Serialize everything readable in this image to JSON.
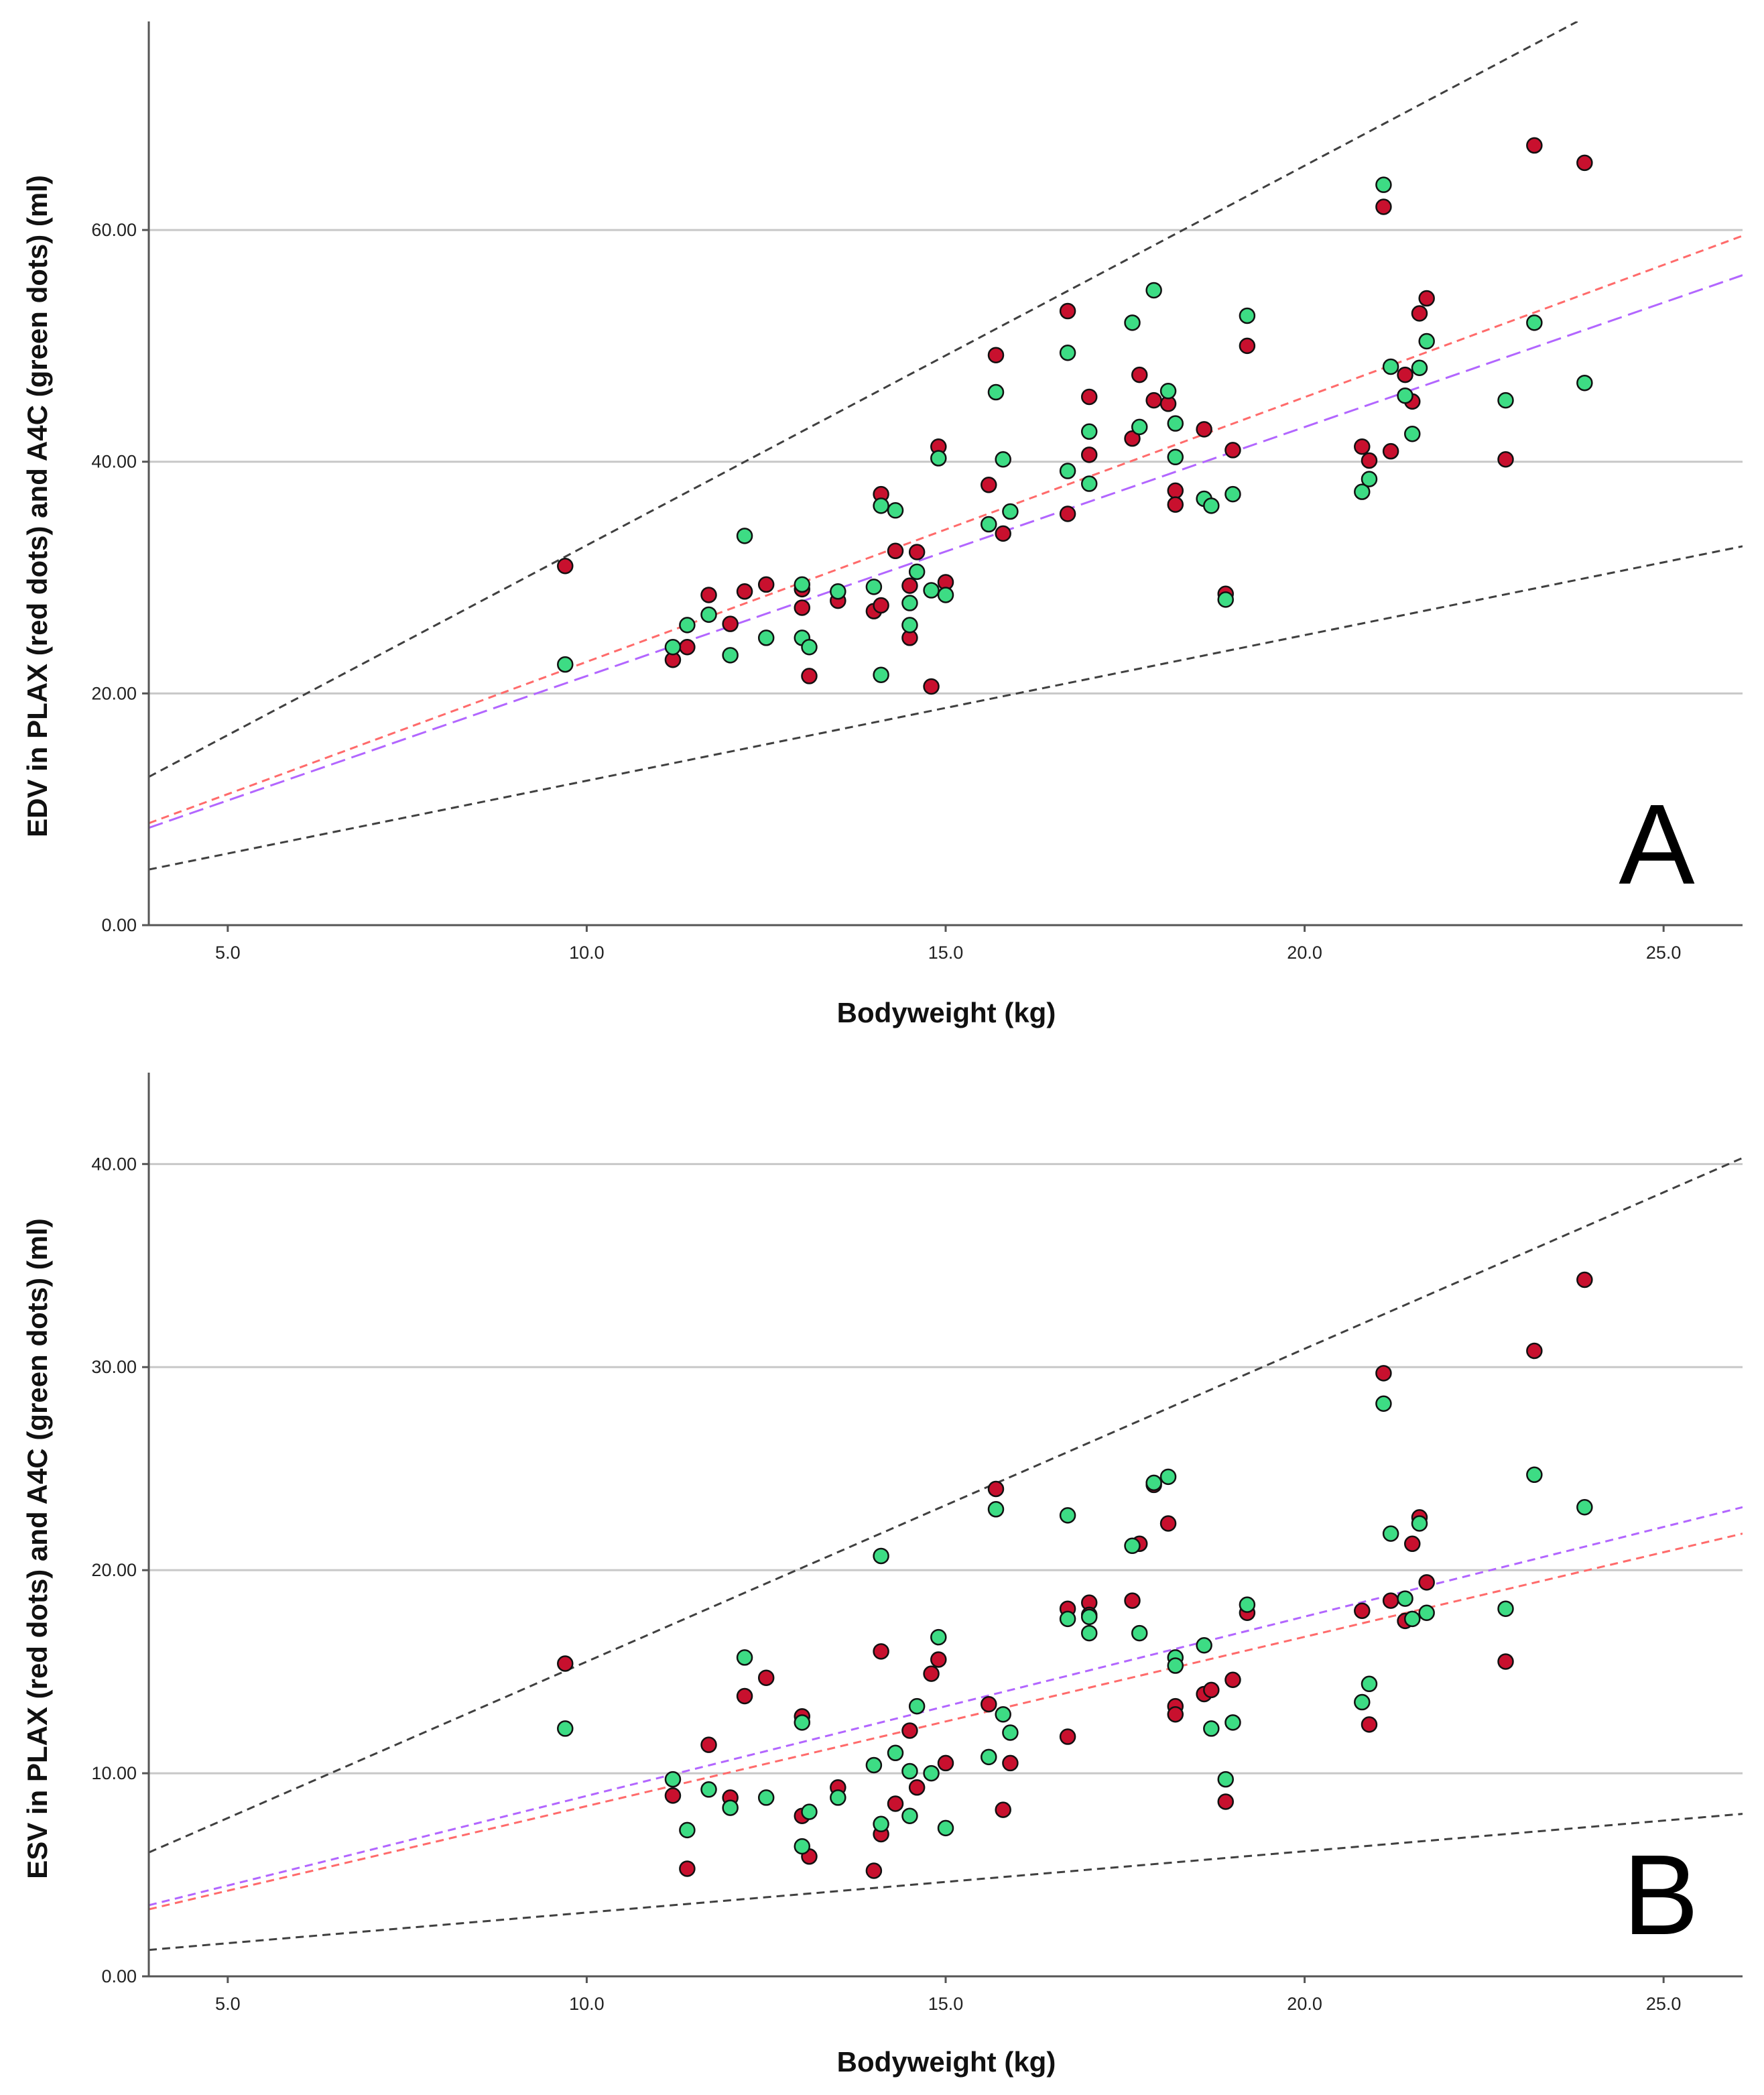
{
  "figure": {
    "colors": {
      "plax_dot": "#c8102e",
      "a4c_dot": "#3ddc84",
      "dot_edge": "#111111",
      "plax_fit": "#ff6b6b",
      "a4c_fit": "#b266ff",
      "limit_line": "#404040",
      "grid": "#c8c8c8",
      "axis": "#555555"
    }
  },
  "chart_data": [
    {
      "type": "scatter",
      "panel_label": "A",
      "xlabel": "Bodyweight (kg)",
      "ylabel": "EDV in PLAX (red dots) and A4C (green dots) (ml)",
      "xlim": [
        3.9,
        26.1
      ],
      "ylim": [
        0,
        78
      ],
      "x_ticks": [
        5,
        10,
        15,
        20,
        25
      ],
      "x_tick_labels": [
        "5.0",
        "10.0",
        "15.0",
        "20.0",
        "25.0"
      ],
      "y_ticks": [
        0,
        20,
        40,
        60
      ],
      "y_tick_labels": [
        "0.00",
        "20.00",
        "40.00",
        "60.00"
      ],
      "grid": "horizontal",
      "series": [
        {
          "name": "PLAX",
          "color": "#c8102e",
          "points": [
            [
              9.7,
              31.0
            ],
            [
              11.2,
              22.9
            ],
            [
              11.4,
              24.0
            ],
            [
              11.7,
              28.5
            ],
            [
              12.0,
              26.0
            ],
            [
              12.2,
              28.8
            ],
            [
              12.5,
              29.4
            ],
            [
              13.0,
              29.0
            ],
            [
              13.0,
              27.4
            ],
            [
              13.1,
              21.5
            ],
            [
              13.5,
              28.0
            ],
            [
              14.0,
              27.1
            ],
            [
              14.1,
              27.6
            ],
            [
              14.1,
              37.2
            ],
            [
              14.3,
              32.3
            ],
            [
              14.5,
              29.3
            ],
            [
              14.5,
              24.8
            ],
            [
              14.6,
              32.2
            ],
            [
              14.8,
              20.6
            ],
            [
              14.9,
              41.3
            ],
            [
              15.0,
              29.6
            ],
            [
              15.6,
              38.0
            ],
            [
              15.7,
              49.2
            ],
            [
              15.8,
              33.8
            ],
            [
              16.7,
              53.0
            ],
            [
              16.7,
              35.5
            ],
            [
              17.0,
              45.6
            ],
            [
              17.0,
              40.6
            ],
            [
              17.6,
              42.0
            ],
            [
              17.7,
              47.5
            ],
            [
              17.9,
              45.3
            ],
            [
              18.1,
              45.0
            ],
            [
              18.2,
              37.5
            ],
            [
              18.2,
              36.3
            ],
            [
              18.6,
              42.8
            ],
            [
              18.9,
              28.6
            ],
            [
              19.0,
              41.0
            ],
            [
              19.2,
              50.0
            ],
            [
              20.8,
              41.3
            ],
            [
              20.9,
              40.1
            ],
            [
              21.1,
              62.0
            ],
            [
              21.2,
              40.9
            ],
            [
              21.4,
              47.5
            ],
            [
              21.5,
              45.2
            ],
            [
              21.6,
              52.8
            ],
            [
              21.7,
              54.1
            ],
            [
              22.8,
              40.2
            ],
            [
              23.2,
              67.3
            ],
            [
              23.9,
              65.8
            ]
          ]
        },
        {
          "name": "A4C",
          "color": "#3ddc84",
          "points": [
            [
              9.7,
              22.5
            ],
            [
              11.2,
              24.0
            ],
            [
              11.4,
              25.9
            ],
            [
              11.7,
              26.8
            ],
            [
              12.0,
              23.3
            ],
            [
              12.2,
              33.6
            ],
            [
              12.5,
              24.8
            ],
            [
              13.0,
              29.4
            ],
            [
              13.0,
              24.8
            ],
            [
              13.1,
              24.0
            ],
            [
              13.5,
              28.8
            ],
            [
              14.0,
              29.2
            ],
            [
              14.1,
              36.2
            ],
            [
              14.1,
              21.6
            ],
            [
              14.3,
              35.8
            ],
            [
              14.5,
              27.8
            ],
            [
              14.5,
              25.9
            ],
            [
              14.6,
              30.5
            ],
            [
              14.8,
              28.9
            ],
            [
              14.9,
              40.3
            ],
            [
              15.0,
              28.5
            ],
            [
              15.6,
              34.6
            ],
            [
              15.7,
              46.0
            ],
            [
              15.8,
              40.2
            ],
            [
              15.9,
              35.7
            ],
            [
              16.7,
              49.4
            ],
            [
              16.7,
              39.2
            ],
            [
              17.0,
              42.6
            ],
            [
              17.0,
              38.1
            ],
            [
              17.6,
              52.0
            ],
            [
              17.7,
              43.0
            ],
            [
              17.9,
              54.8
            ],
            [
              18.1,
              46.1
            ],
            [
              18.2,
              43.3
            ],
            [
              18.2,
              40.4
            ],
            [
              18.6,
              36.8
            ],
            [
              18.7,
              36.2
            ],
            [
              18.9,
              28.1
            ],
            [
              19.0,
              37.2
            ],
            [
              19.2,
              52.6
            ],
            [
              20.8,
              37.4
            ],
            [
              20.9,
              38.5
            ],
            [
              21.1,
              63.9
            ],
            [
              21.2,
              48.2
            ],
            [
              21.4,
              45.7
            ],
            [
              21.5,
              42.4
            ],
            [
              21.6,
              48.1
            ],
            [
              21.7,
              50.4
            ],
            [
              22.8,
              45.3
            ],
            [
              23.2,
              52.0
            ],
            [
              23.9,
              46.8
            ]
          ]
        }
      ],
      "reference_lines": [
        {
          "name": "PLAX regression",
          "style": "short-dash",
          "color": "#ff6b6b",
          "x": [
            3.9,
            26.1
          ],
          "y": [
            8.8,
            59.5
          ]
        },
        {
          "name": "A4C regression",
          "style": "long-dash",
          "color": "#b266ff",
          "x": [
            3.9,
            26.1
          ],
          "y": [
            8.4,
            56.1
          ]
        },
        {
          "name": "Upper limit",
          "style": "short-dash",
          "color": "#404040",
          "x": [
            3.9,
            23.8
          ],
          "y": [
            12.8,
            78.0
          ]
        },
        {
          "name": "Lower limit",
          "style": "short-dash",
          "color": "#404040",
          "x": [
            3.9,
            26.1
          ],
          "y": [
            4.8,
            32.7
          ]
        }
      ]
    },
    {
      "type": "scatter",
      "panel_label": "B",
      "xlabel": "Bodyweight (kg)",
      "ylabel": "ESV in PLAX (red dots) and A4C (green dots) (ml)",
      "xlim": [
        3.9,
        26.1
      ],
      "ylim": [
        0,
        44.5
      ],
      "x_ticks": [
        5,
        10,
        15,
        20,
        25
      ],
      "x_tick_labels": [
        "5.0",
        "10.0",
        "15.0",
        "20.0",
        "25.0"
      ],
      "y_ticks": [
        0,
        10,
        20,
        30,
        40
      ],
      "y_tick_labels": [
        "0.00",
        "10.00",
        "20.00",
        "30.00",
        "40.00"
      ],
      "grid": "horizontal",
      "series": [
        {
          "name": "PLAX",
          "color": "#c8102e",
          "points": [
            [
              9.7,
              15.4
            ],
            [
              11.2,
              8.9
            ],
            [
              11.4,
              5.3
            ],
            [
              11.7,
              11.4
            ],
            [
              12.0,
              8.8
            ],
            [
              12.2,
              13.8
            ],
            [
              12.5,
              14.7
            ],
            [
              13.0,
              12.8
            ],
            [
              13.0,
              7.9
            ],
            [
              13.1,
              5.9
            ],
            [
              13.5,
              9.3
            ],
            [
              14.0,
              5.2
            ],
            [
              14.1,
              7.0
            ],
            [
              14.1,
              16.0
            ],
            [
              14.3,
              8.5
            ],
            [
              14.5,
              12.1
            ],
            [
              14.6,
              9.3
            ],
            [
              14.8,
              14.9
            ],
            [
              14.9,
              15.6
            ],
            [
              15.0,
              10.5
            ],
            [
              15.6,
              13.4
            ],
            [
              15.7,
              24.0
            ],
            [
              15.8,
              8.2
            ],
            [
              15.9,
              10.5
            ],
            [
              16.7,
              18.1
            ],
            [
              16.7,
              11.8
            ],
            [
              17.0,
              18.4
            ],
            [
              17.0,
              17.8
            ],
            [
              17.6,
              18.5
            ],
            [
              17.7,
              21.3
            ],
            [
              17.9,
              24.2
            ],
            [
              18.1,
              22.3
            ],
            [
              18.2,
              13.3
            ],
            [
              18.2,
              12.9
            ],
            [
              18.6,
              13.9
            ],
            [
              18.7,
              14.1
            ],
            [
              18.9,
              8.6
            ],
            [
              19.0,
              14.6
            ],
            [
              19.2,
              17.9
            ],
            [
              20.8,
              18.0
            ],
            [
              20.9,
              12.4
            ],
            [
              21.1,
              29.7
            ],
            [
              21.2,
              18.5
            ],
            [
              21.4,
              17.5
            ],
            [
              21.5,
              21.3
            ],
            [
              21.6,
              22.6
            ],
            [
              21.7,
              19.4
            ],
            [
              22.8,
              15.5
            ],
            [
              23.2,
              30.8
            ],
            [
              23.9,
              34.3
            ]
          ]
        },
        {
          "name": "A4C",
          "color": "#3ddc84",
          "points": [
            [
              9.7,
              12.2
            ],
            [
              11.2,
              9.7
            ],
            [
              11.4,
              7.2
            ],
            [
              11.7,
              9.2
            ],
            [
              12.0,
              8.3
            ],
            [
              12.2,
              15.7
            ],
            [
              12.5,
              8.8
            ],
            [
              13.0,
              12.5
            ],
            [
              13.0,
              6.4
            ],
            [
              13.1,
              8.1
            ],
            [
              13.5,
              8.8
            ],
            [
              14.0,
              10.4
            ],
            [
              14.1,
              20.7
            ],
            [
              14.1,
              7.5
            ],
            [
              14.3,
              11.0
            ],
            [
              14.5,
              10.1
            ],
            [
              14.5,
              7.9
            ],
            [
              14.6,
              13.3
            ],
            [
              14.8,
              10.0
            ],
            [
              14.9,
              16.7
            ],
            [
              15.0,
              7.3
            ],
            [
              15.6,
              10.8
            ],
            [
              15.7,
              23.0
            ],
            [
              15.8,
              12.9
            ],
            [
              15.9,
              12.0
            ],
            [
              16.7,
              22.7
            ],
            [
              16.7,
              17.6
            ],
            [
              17.0,
              17.7
            ],
            [
              17.0,
              16.9
            ],
            [
              17.6,
              21.2
            ],
            [
              17.7,
              16.9
            ],
            [
              17.9,
              24.3
            ],
            [
              18.1,
              24.6
            ],
            [
              18.2,
              15.7
            ],
            [
              18.2,
              15.3
            ],
            [
              18.6,
              16.3
            ],
            [
              18.7,
              12.2
            ],
            [
              18.9,
              9.7
            ],
            [
              19.0,
              12.5
            ],
            [
              19.2,
              18.3
            ],
            [
              20.8,
              13.5
            ],
            [
              20.9,
              14.4
            ],
            [
              21.1,
              28.2
            ],
            [
              21.2,
              21.8
            ],
            [
              21.4,
              18.6
            ],
            [
              21.5,
              17.6
            ],
            [
              21.6,
              22.3
            ],
            [
              21.7,
              17.9
            ],
            [
              22.8,
              18.1
            ],
            [
              23.2,
              24.7
            ],
            [
              23.9,
              23.1
            ]
          ]
        }
      ],
      "reference_lines": [
        {
          "name": "PLAX regression",
          "style": "short-dash",
          "color": "#ff6b6b",
          "x": [
            3.9,
            26.1
          ],
          "y": [
            3.3,
            21.8
          ]
        },
        {
          "name": "A4C regression",
          "style": "short-dash",
          "color": "#b266ff",
          "x": [
            3.9,
            26.1
          ],
          "y": [
            3.5,
            23.1
          ]
        },
        {
          "name": "Upper limit",
          "style": "short-dash",
          "color": "#404040",
          "x": [
            3.9,
            26.1
          ],
          "y": [
            6.1,
            40.3
          ]
        },
        {
          "name": "Lower limit",
          "style": "short-dash",
          "color": "#404040",
          "x": [
            3.9,
            26.1
          ],
          "y": [
            1.3,
            8.0
          ]
        }
      ]
    }
  ]
}
